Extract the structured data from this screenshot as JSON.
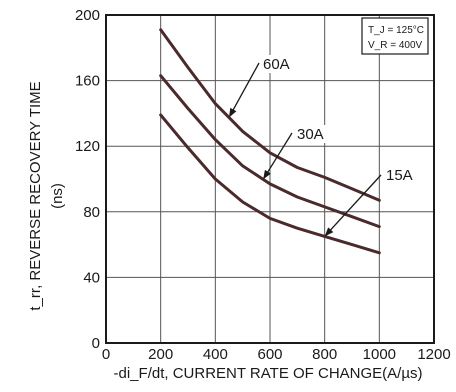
{
  "chart_data": {
    "type": "line",
    "xlabel": "-di_F/dt, CURRENT RATE OF CHANGE(A/µs)",
    "ylabel": "t_rr, REVERSE RECOVERY TIME (ns)",
    "xlim": [
      0,
      1200
    ],
    "ylim": [
      0,
      200
    ],
    "x_ticks": [
      0,
      200,
      400,
      600,
      800,
      1000,
      1200
    ],
    "y_ticks": [
      0,
      40,
      80,
      120,
      160,
      200
    ],
    "grid": true,
    "conditions": [
      "T_J = 125°C",
      "V_R = 400V"
    ],
    "series": [
      {
        "name": "60A",
        "x": [
          200,
          300,
          400,
          500,
          600,
          700,
          800,
          900,
          1000
        ],
        "y": [
          191,
          168,
          146,
          129,
          116,
          107,
          101,
          94,
          87
        ]
      },
      {
        "name": "30A",
        "x": [
          200,
          300,
          400,
          500,
          600,
          700,
          800,
          900,
          1000
        ],
        "y": [
          163,
          143,
          124,
          108,
          97,
          89,
          83,
          77,
          71
        ]
      },
      {
        "name": "15A",
        "x": [
          200,
          300,
          400,
          500,
          600,
          700,
          800,
          900,
          1000
        ],
        "y": [
          139,
          119,
          100,
          86,
          76,
          70,
          65,
          60,
          55
        ]
      }
    ]
  }
}
